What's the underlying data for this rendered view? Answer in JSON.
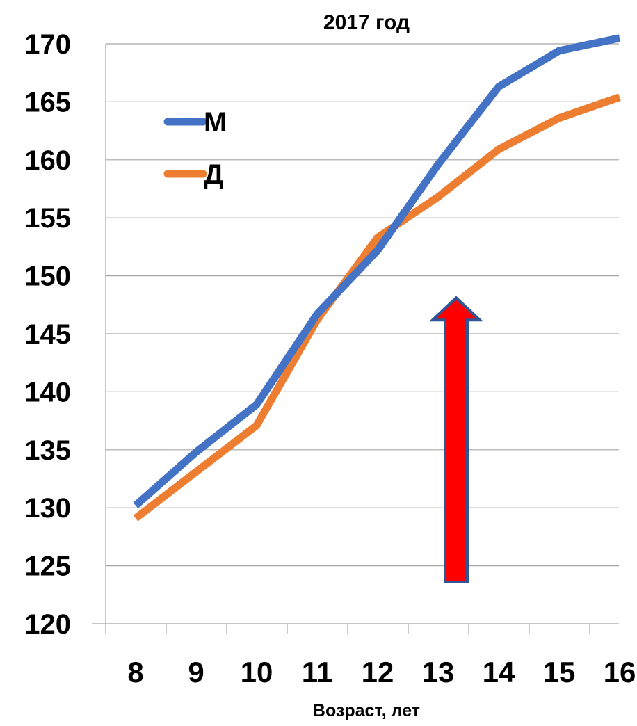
{
  "chart_data": {
    "type": "line",
    "title": "2017 год",
    "xlabel": "Возраст, лет",
    "ylabel": "",
    "categories": [
      "8",
      "9",
      "10",
      "11",
      "12",
      "13",
      "14",
      "15",
      "16"
    ],
    "ylim": [
      120,
      170
    ],
    "yticks": [
      "120",
      "125",
      "130",
      "135",
      "140",
      "145",
      "150",
      "155",
      "160",
      "165",
      "170"
    ],
    "grid": true,
    "legend_position": "top-left",
    "series": [
      {
        "name": "М",
        "color": "#4472C4",
        "values": [
          130.2,
          134.8,
          138.9,
          146.7,
          152.2,
          159.6,
          166.3,
          169.4,
          170.5
        ]
      },
      {
        "name": "Д",
        "color": "#ED7D31",
        "values": [
          129.1,
          133.1,
          137.1,
          146.2,
          153.3,
          156.8,
          160.9,
          163.6,
          165.4
        ]
      }
    ],
    "annotation": {
      "type": "arrow",
      "direction": "up",
      "color": "#FF0000",
      "outline": "#2F5597",
      "x_category": "13",
      "from_value": 123.6,
      "to_value": 148.1
    }
  }
}
